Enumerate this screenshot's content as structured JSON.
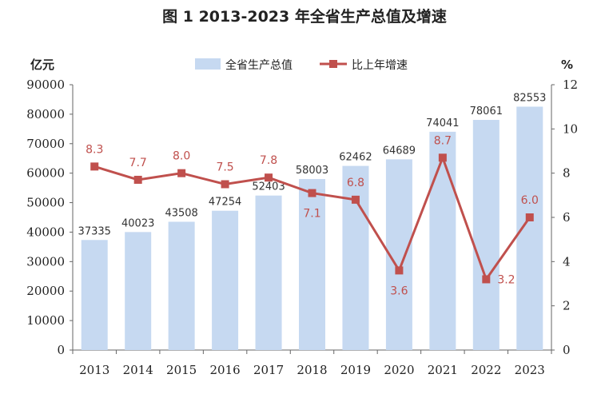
{
  "chart_data": {
    "type": "bar",
    "title": "图 1   2013-2023 年全省生产总值及增速",
    "categories": [
      "2013",
      "2014",
      "2015",
      "2016",
      "2017",
      "2018",
      "2019",
      "2020",
      "2021",
      "2022",
      "2023"
    ],
    "ylabel_left": "亿元",
    "ylabel_right": "%",
    "ylim_left": [
      0,
      90000
    ],
    "ylim_right": [
      0,
      12
    ],
    "yticks_left": [
      "90000",
      "80000",
      "70000",
      "60000",
      "50000",
      "40000",
      "30000",
      "20000",
      "10000",
      "0"
    ],
    "yticks_right": [
      "12",
      "10",
      "8",
      "6",
      "4",
      "2",
      "0"
    ],
    "series": [
      {
        "name": "全省生产总值",
        "type": "bar",
        "axis": "left",
        "color": "#c6d9f1",
        "values": [
          37335,
          40023,
          43508,
          47254,
          52403,
          58003,
          62462,
          64689,
          74041,
          78061,
          82553
        ],
        "labels": [
          "37335",
          "40023",
          "43508",
          "47254",
          "52403",
          "58003",
          "62462",
          "64689",
          "74041",
          "78061",
          "82553"
        ]
      },
      {
        "name": "比上年增速",
        "type": "line",
        "axis": "right",
        "color": "#c0504d",
        "values": [
          8.3,
          7.7,
          8.0,
          7.5,
          7.8,
          7.1,
          6.8,
          3.6,
          8.7,
          3.2,
          6.0
        ],
        "labels": [
          "8.3",
          "7.7",
          "8.0",
          "7.5",
          "7.8",
          "7.1",
          "6.8",
          "3.6",
          "8.7",
          "3.2",
          "6.0"
        ]
      }
    ],
    "legend": "top-center",
    "grid": false
  }
}
